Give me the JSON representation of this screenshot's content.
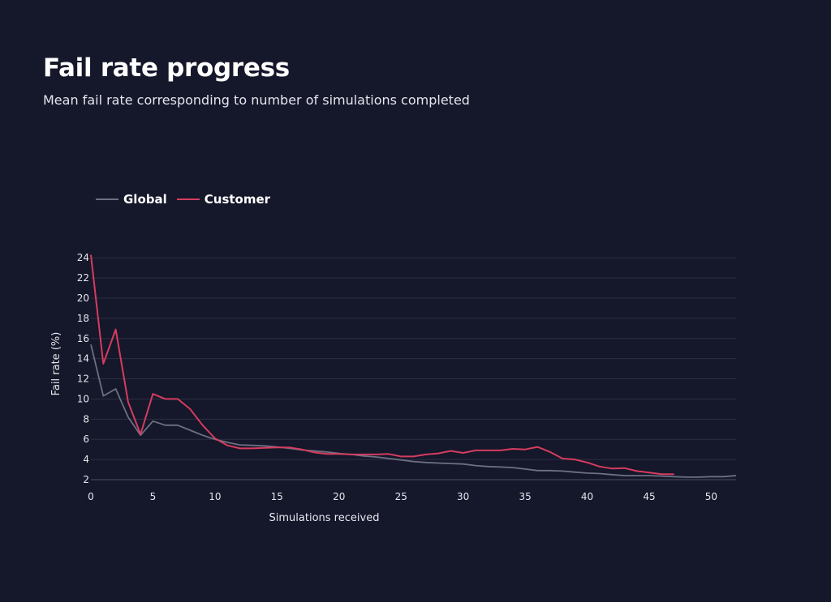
{
  "header": {
    "title": "Fail rate progress",
    "subtitle": "Mean fail rate corresponding to number of simulations completed"
  },
  "legend": {
    "items": [
      {
        "name": "Global",
        "color": "#6d7082"
      },
      {
        "name": "Customer",
        "color": "#d63c5f"
      }
    ]
  },
  "chart_data": {
    "type": "line",
    "title": "Fail rate progress",
    "subtitle": "Mean fail rate corresponding to number of simulations completed",
    "xlabel": "Simulations received",
    "ylabel": "Fail rate (%)",
    "xlim": [
      0,
      52
    ],
    "ylim": [
      2,
      24.5
    ],
    "xticks": [
      0,
      5,
      10,
      15,
      20,
      25,
      30,
      35,
      40,
      45,
      50
    ],
    "yticks": [
      2,
      4,
      6,
      8,
      10,
      12,
      14,
      16,
      18,
      20,
      22,
      24
    ],
    "grid": "horizontal",
    "legend_position": "top-left",
    "series": [
      {
        "name": "Global",
        "color": "#6d7082",
        "x": [
          0,
          1,
          2,
          3,
          4,
          5,
          6,
          7,
          8,
          9,
          10,
          11,
          12,
          13,
          14,
          15,
          16,
          17,
          18,
          19,
          20,
          21,
          22,
          23,
          24,
          25,
          26,
          27,
          28,
          29,
          30,
          31,
          32,
          33,
          34,
          35,
          36,
          37,
          38,
          39,
          40,
          41,
          42,
          43,
          44,
          45,
          46,
          47,
          48,
          49,
          50,
          51,
          52
        ],
        "values": [
          15.4,
          10.3,
          11.0,
          8.2,
          6.4,
          7.8,
          7.4,
          7.4,
          6.9,
          6.4,
          6.0,
          5.7,
          5.45,
          5.4,
          5.35,
          5.25,
          5.1,
          4.95,
          4.85,
          4.75,
          4.6,
          4.5,
          4.35,
          4.25,
          4.1,
          3.95,
          3.8,
          3.7,
          3.65,
          3.6,
          3.55,
          3.4,
          3.3,
          3.25,
          3.2,
          3.05,
          2.9,
          2.9,
          2.85,
          2.75,
          2.65,
          2.6,
          2.5,
          2.4,
          2.4,
          2.4,
          2.35,
          2.3,
          2.25,
          2.25,
          2.3,
          2.3,
          2.4
        ]
      },
      {
        "name": "Customer",
        "color": "#d63c5f",
        "x": [
          0,
          1,
          2,
          3,
          4,
          5,
          6,
          7,
          8,
          9,
          10,
          11,
          12,
          13,
          14,
          15,
          16,
          17,
          18,
          19,
          20,
          21,
          22,
          23,
          24,
          25,
          26,
          27,
          28,
          29,
          30,
          31,
          32,
          33,
          34,
          35,
          36,
          37,
          38,
          39,
          40,
          41,
          42,
          43,
          44,
          45,
          46,
          47
        ],
        "values": [
          24.3,
          13.5,
          16.9,
          9.7,
          6.5,
          10.5,
          10.0,
          10.0,
          9.0,
          7.4,
          6.1,
          5.4,
          5.1,
          5.1,
          5.15,
          5.2,
          5.2,
          5.0,
          4.7,
          4.55,
          4.55,
          4.5,
          4.5,
          4.5,
          4.55,
          4.3,
          4.3,
          4.5,
          4.6,
          4.85,
          4.65,
          4.9,
          4.9,
          4.9,
          5.05,
          5.0,
          5.25,
          4.75,
          4.1,
          4.0,
          3.7,
          3.3,
          3.1,
          3.15,
          2.85,
          2.7,
          2.55,
          2.55
        ]
      }
    ]
  }
}
